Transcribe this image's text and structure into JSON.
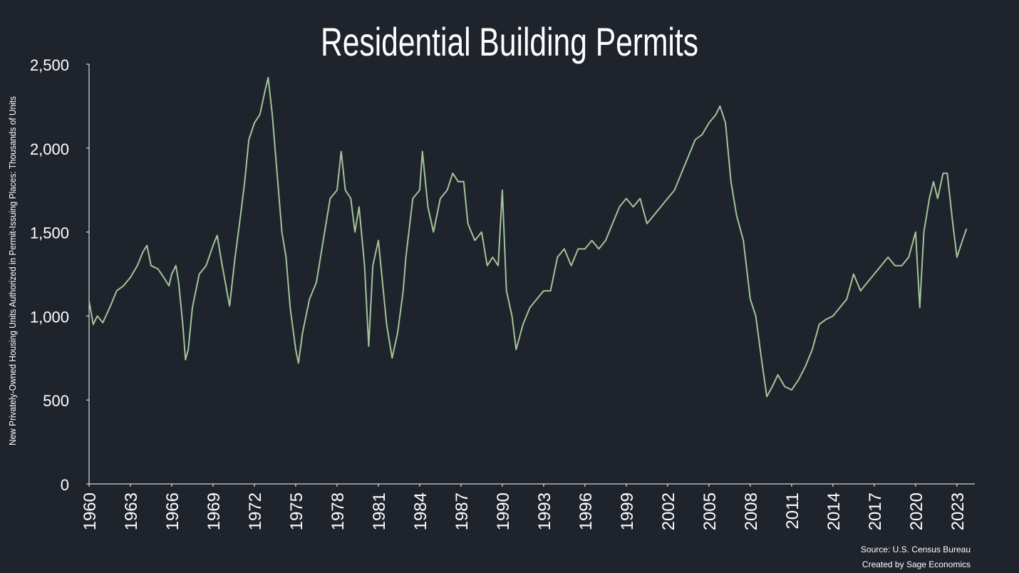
{
  "chart_data": {
    "type": "line",
    "title": "Residential Building Permits",
    "y_label": "New Privately-Owned Housing Units Authorized in Permit-Issuing Places: Thousands of Units",
    "source": "Source: U.S. Census Bureau",
    "credit": "Created by Sage Economics",
    "color": "#a3c49a",
    "x": [
      1960.0,
      1960.3,
      1960.6,
      1961.0,
      1961.5,
      1962.0,
      1962.5,
      1963.0,
      1963.5,
      1963.9,
      1964.2,
      1964.5,
      1965.0,
      1965.5,
      1965.8,
      1966.0,
      1966.3,
      1966.5,
      1966.8,
      1967.0,
      1967.2,
      1967.5,
      1968.0,
      1968.5,
      1969.0,
      1969.3,
      1969.6,
      1970.0,
      1970.2,
      1970.6,
      1971.0,
      1971.3,
      1971.6,
      1972.0,
      1972.4,
      1972.8,
      1973.0,
      1973.3,
      1973.6,
      1974.0,
      1974.3,
      1974.6,
      1975.0,
      1975.2,
      1975.5,
      1976.0,
      1976.5,
      1977.0,
      1977.5,
      1978.0,
      1978.3,
      1978.6,
      1979.0,
      1979.3,
      1979.6,
      1980.0,
      1980.3,
      1980.6,
      1981.0,
      1981.3,
      1981.6,
      1982.0,
      1982.4,
      1982.8,
      1983.0,
      1983.5,
      1984.0,
      1984.2,
      1984.6,
      1985.0,
      1985.5,
      1986.0,
      1986.4,
      1986.8,
      1987.2,
      1987.5,
      1988.0,
      1988.5,
      1988.9,
      1989.3,
      1989.7,
      1990.0,
      1990.3,
      1990.7,
      1991.0,
      1991.5,
      1992.0,
      1992.5,
      1993.0,
      1993.5,
      1994.0,
      1994.5,
      1995.0,
      1995.5,
      1996.0,
      1996.5,
      1997.0,
      1997.5,
      1998.0,
      1998.5,
      1999.0,
      1999.5,
      2000.0,
      2000.5,
      2001.0,
      2001.5,
      2002.0,
      2002.5,
      2003.0,
      2003.5,
      2004.0,
      2004.5,
      2005.0,
      2005.5,
      2005.8,
      2006.2,
      2006.6,
      2007.0,
      2007.5,
      2008.0,
      2008.4,
      2008.8,
      2009.2,
      2009.6,
      2010.0,
      2010.5,
      2011.0,
      2011.5,
      2012.0,
      2012.5,
      2013.0,
      2013.5,
      2014.0,
      2014.5,
      2015.0,
      2015.5,
      2016.0,
      2016.5,
      2017.0,
      2017.5,
      2018.0,
      2018.5,
      2019.0,
      2019.5,
      2020.0,
      2020.3,
      2020.6,
      2021.0,
      2021.3,
      2021.6,
      2022.0,
      2022.3,
      2022.7,
      2023.0,
      2023.4,
      2023.7
    ],
    "values": [
      1090,
      950,
      1000,
      960,
      1050,
      1150,
      1180,
      1230,
      1300,
      1380,
      1420,
      1300,
      1280,
      1220,
      1180,
      1250,
      1300,
      1200,
      950,
      740,
      800,
      1050,
      1250,
      1300,
      1420,
      1480,
      1330,
      1150,
      1060,
      1350,
      1600,
      1800,
      2050,
      2150,
      2200,
      2350,
      2420,
      2200,
      1900,
      1500,
      1350,
      1050,
      800,
      720,
      900,
      1100,
      1200,
      1450,
      1700,
      1750,
      1980,
      1750,
      1700,
      1500,
      1650,
      1300,
      820,
      1300,
      1450,
      1200,
      950,
      750,
      900,
      1150,
      1350,
      1700,
      1750,
      1980,
      1650,
      1500,
      1700,
      1750,
      1850,
      1800,
      1800,
      1550,
      1450,
      1500,
      1300,
      1350,
      1300,
      1750,
      1150,
      1000,
      800,
      950,
      1050,
      1100,
      1150,
      1150,
      1350,
      1400,
      1300,
      1400,
      1400,
      1450,
      1400,
      1450,
      1550,
      1650,
      1700,
      1650,
      1700,
      1550,
      1600,
      1650,
      1700,
      1750,
      1850,
      1950,
      2050,
      2080,
      2150,
      2200,
      2250,
      2150,
      1800,
      1600,
      1450,
      1100,
      1000,
      750,
      520,
      580,
      650,
      580,
      560,
      620,
      700,
      800,
      950,
      980,
      1000,
      1050,
      1100,
      1250,
      1150,
      1200,
      1250,
      1300,
      1350,
      1300,
      1300,
      1350,
      1500,
      1050,
      1500,
      1700,
      1800,
      1700,
      1850,
      1850,
      1550,
      1350,
      1450,
      1520
    ],
    "xlim": [
      1960,
      2024.3
    ],
    "xticks": [
      1960,
      1963,
      1966,
      1969,
      1972,
      1975,
      1978,
      1981,
      1984,
      1987,
      1990,
      1993,
      1996,
      1999,
      2002,
      2005,
      2008,
      2011,
      2014,
      2017,
      2020,
      2023
    ],
    "ylim": [
      0,
      2500
    ],
    "yticks": [
      0,
      500,
      {
        "value": 1000,
        "label": "1,000"
      },
      {
        "value": 1500,
        "label": "1,500"
      },
      {
        "value": 2000,
        "label": "2,000"
      },
      {
        "value": 2500,
        "label": "2,500"
      }
    ],
    "grid": false
  }
}
